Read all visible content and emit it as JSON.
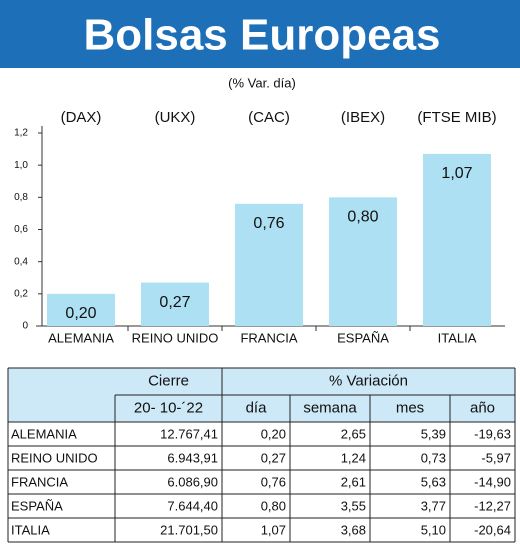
{
  "chart_data": {
    "type": "bar",
    "title": "Bolsas Europeas",
    "subtitle": "(% Var. día)",
    "categories": [
      "ALEMANIA",
      "REINO UNIDO",
      "FRANCIA",
      "ESPAÑA",
      "ITALIA"
    ],
    "index_labels": [
      "(DAX)",
      "(UKX)",
      "(CAC)",
      "(IBEX)",
      "(FTSE MIB)"
    ],
    "values": [
      0.2,
      0.27,
      0.76,
      0.8,
      1.07
    ],
    "value_labels": [
      "0,20",
      "0,27",
      "0,76",
      "0,80",
      "1,07"
    ],
    "color": "#aee0f3",
    "ylim": [
      0,
      1.2
    ],
    "yticks": [
      0,
      {
        "value": 0.2,
        "label": "0,2"
      },
      {
        "value": 0.4,
        "label": "0,4"
      },
      {
        "value": 0.6,
        "label": "0,6"
      },
      {
        "value": 0.8,
        "label": "0,8"
      },
      {
        "value": 1.0,
        "label": "1,0"
      },
      {
        "value": 1.2,
        "label": "1,2"
      }
    ],
    "grid": false
  },
  "table": {
    "header": [
      "Cierre",
      "% Variación"
    ],
    "subheader": [
      "20- 10-´22",
      "día",
      "semana",
      "mes",
      "año"
    ],
    "rows": [
      [
        "ALEMANIA",
        "12.767,41",
        "0,20",
        "2,65",
        "5,39",
        "-19,63"
      ],
      [
        "REINO UNIDO",
        "6.943,91",
        "0,27",
        "1,24",
        "0,73",
        "-5,97"
      ],
      [
        "FRANCIA",
        "6.086,90",
        "0,76",
        "2,61",
        "5,63",
        "-14,90"
      ],
      [
        "ESPAÑA",
        "7.644,40",
        "0,80",
        "3,55",
        "3,77",
        "-12,27"
      ],
      [
        "ITALIA",
        "21.701,50",
        "1,07",
        "3,68",
        "5,10",
        "-20,64"
      ]
    ]
  }
}
